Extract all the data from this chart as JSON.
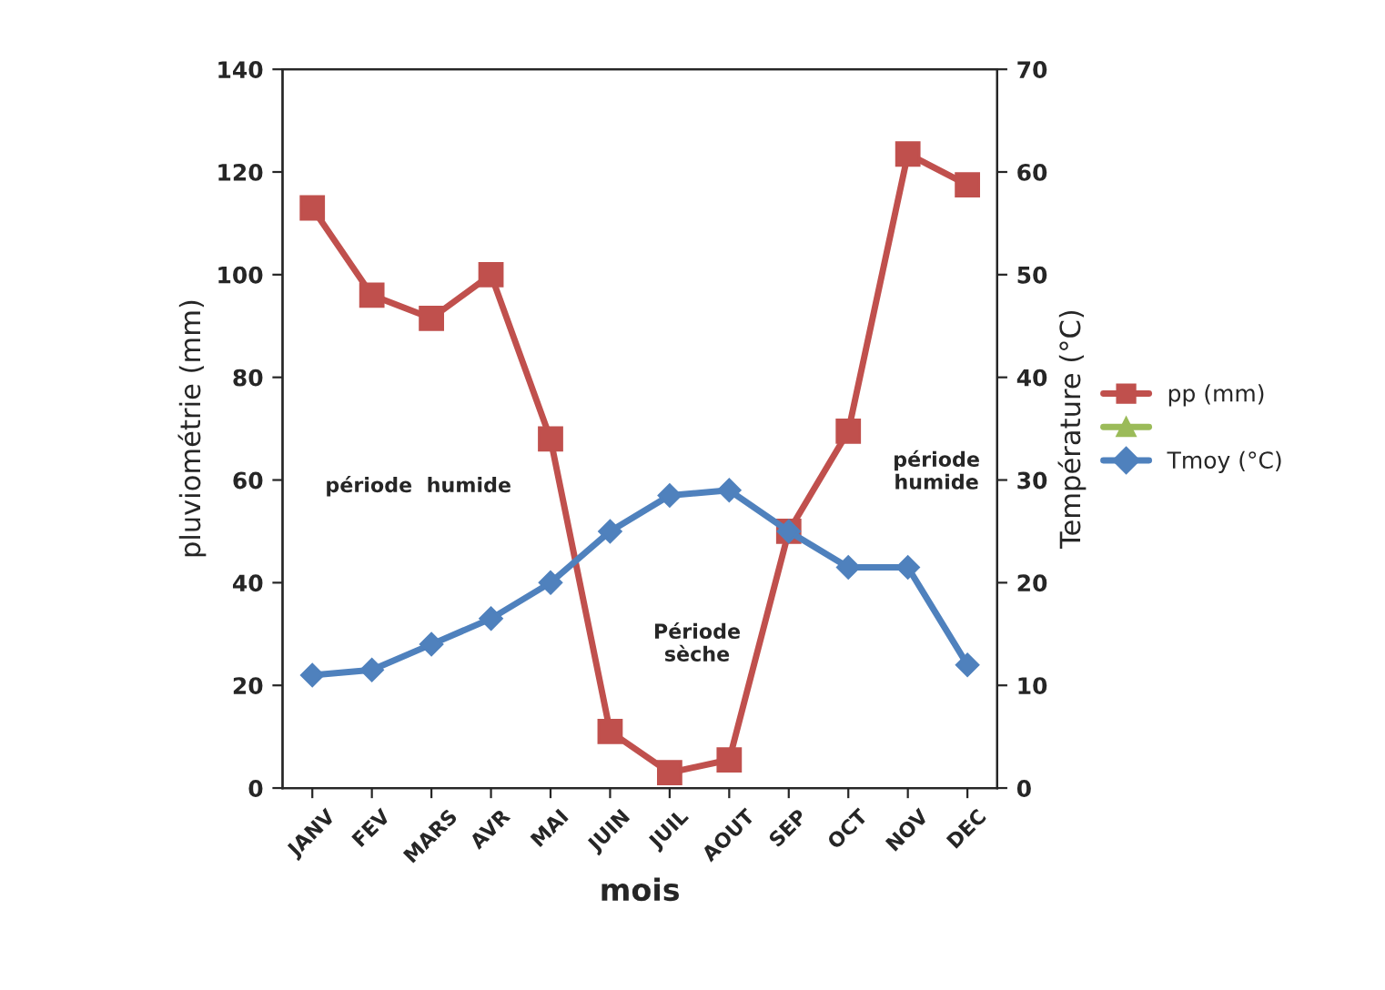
{
  "chart_data": {
    "type": "line",
    "xlabel": "mois",
    "ylabel": "pluviométrie (mm)",
    "y2label": "Température (°C)",
    "categories": [
      "JANV",
      "FEV",
      "MARS",
      "AVR",
      "MAI",
      "JUIN",
      "JUIL",
      "AOUT",
      "SEP",
      "OCT",
      "NOV",
      "DEC"
    ],
    "series": [
      {
        "name": "pp (mm)",
        "color": "#c0504d",
        "marker": "square",
        "values": [
          113,
          96,
          91.5,
          100,
          68,
          11,
          3,
          5.5,
          50,
          69.5,
          123.5,
          117.5
        ]
      },
      {
        "name": "Tmoy (°C)",
        "color": "#4f81bd",
        "marker": "diamond",
        "axis": "y2",
        "values": [
          11,
          11.5,
          14,
          16.5,
          20,
          25,
          28.5,
          29,
          25,
          21.5,
          21.5,
          12
        ]
      }
    ],
    "ylim": [
      0,
      140
    ],
    "yticks": [
      0,
      20,
      40,
      60,
      80,
      100,
      120,
      140
    ],
    "y2lim": [
      0,
      70
    ],
    "y2ticks": [
      0,
      10,
      20,
      30,
      40,
      50,
      60,
      70
    ],
    "annotations": [
      "période  humide",
      "Période\nsèche",
      "période\nhumide"
    ],
    "grid": false,
    "legend": "right"
  }
}
